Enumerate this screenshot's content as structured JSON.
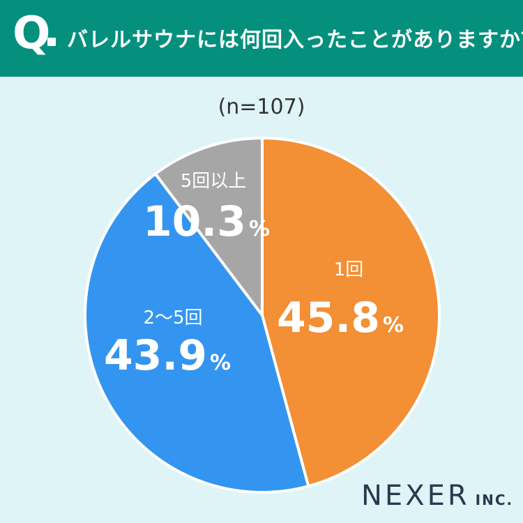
{
  "header": {
    "q_label": "Q",
    "question": "バレルサウナには何回入ったことがありますか？"
  },
  "sample": "(n=107)",
  "chart_data": {
    "type": "pie",
    "title": "バレルサウナには何回入ったことがありますか？",
    "n": 107,
    "unit": "%",
    "slices": [
      {
        "label": "1回",
        "value": 45.8,
        "display": "45.8",
        "color": "#f38f34"
      },
      {
        "label": "2〜5回",
        "value": 43.9,
        "display": "43.9",
        "color": "#3495f0"
      },
      {
        "label": "5回以上",
        "value": 10.3,
        "display": "10.3",
        "color": "#a6a6a6"
      }
    ]
  },
  "logo": {
    "main": "NEXER",
    "sub": "INC."
  }
}
